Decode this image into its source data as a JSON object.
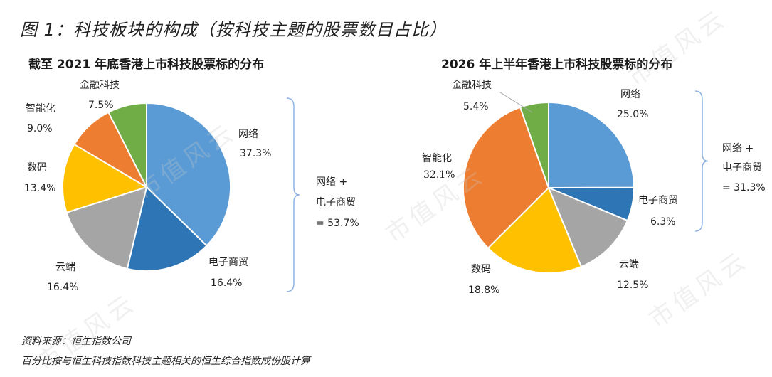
{
  "figure_title": "图 1：科技板块的构成（按科技主题的股票数目占比）",
  "watermark": "市值风云",
  "footer": {
    "source": "资料来源：恒生指数公司",
    "note": "百分比按与恒生科技指数科技主题相关的恒生综合指数成份股计算"
  },
  "colors": {
    "网络": "#5B9BD5",
    "电子商贸": "#2E75B6",
    "云端": "#A5A5A5",
    "数码": "#FFC000",
    "智能化": "#ED7D31",
    "金融科技": "#70AD47"
  },
  "chart_data": [
    {
      "type": "pie",
      "title": "截至 2021 年底香港上市科技股票标的分布",
      "slices": [
        {
          "name": "网络",
          "value": 37.3,
          "label": "37.3%"
        },
        {
          "name": "电子商贸",
          "value": 16.4,
          "label": "16.4%"
        },
        {
          "name": "云端",
          "value": 16.4,
          "label": "16.4%"
        },
        {
          "name": "数码",
          "value": 13.4,
          "label": "13.4%"
        },
        {
          "name": "智能化",
          "value": 9.0,
          "label": "9.0%"
        },
        {
          "name": "金融科技",
          "value": 7.5,
          "label": "7.5%"
        }
      ],
      "bracket": {
        "line1": "网络 +",
        "line2": "电子商贸",
        "line3": "= 53.7%"
      }
    },
    {
      "type": "pie",
      "title": "2026 年上半年香港上市科技股票标的分布",
      "slices": [
        {
          "name": "网络",
          "value": 25.0,
          "label": "25.0%"
        },
        {
          "name": "电子商贸",
          "value": 6.3,
          "label": "6.3%"
        },
        {
          "name": "云端",
          "value": 12.5,
          "label": "12.5%"
        },
        {
          "name": "数码",
          "value": 18.8,
          "label": "18.8%"
        },
        {
          "name": "智能化",
          "value": 32.1,
          "label": "32.1%"
        },
        {
          "name": "金融科技",
          "value": 5.4,
          "label": "5.4%"
        }
      ],
      "bracket": {
        "line1": "网络 +",
        "line2": "电子商贸",
        "line3": "= 31.3%"
      }
    }
  ]
}
